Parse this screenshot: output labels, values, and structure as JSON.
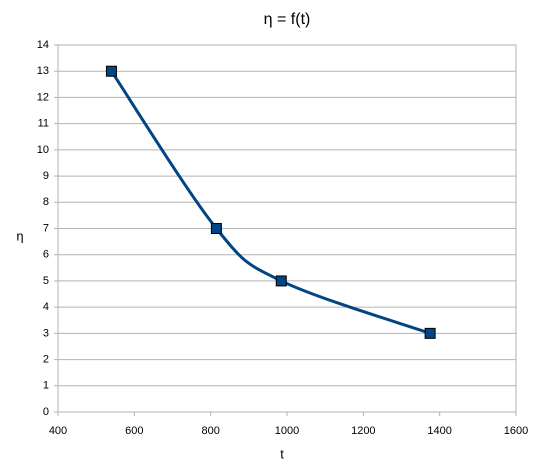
{
  "chart_data": {
    "type": "line",
    "title": "η = f(t)",
    "x_label": "t",
    "y_label": "η",
    "x": [
      540,
      815,
      985,
      1375
    ],
    "values": [
      13,
      7,
      5,
      3
    ],
    "color": "#004586",
    "smooth": true,
    "markers": "square",
    "xlim": [
      400,
      1600
    ],
    "xticks": [
      400,
      600,
      800,
      1000,
      1200,
      1400,
      1600
    ],
    "ylim": [
      0,
      14
    ],
    "yticks": [
      0,
      1,
      2,
      3,
      4,
      5,
      6,
      7,
      8,
      9,
      10,
      11,
      12,
      13,
      14
    ],
    "grid": true
  }
}
